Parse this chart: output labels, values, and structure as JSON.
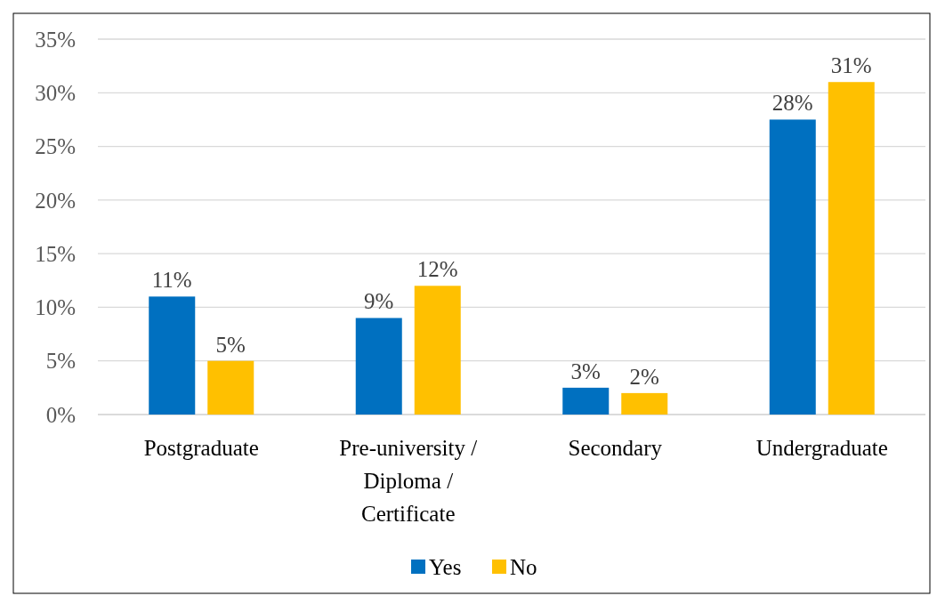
{
  "chart_data": {
    "type": "bar",
    "categories": [
      "Postgraduate",
      "Pre-university / Diploma / Certificate",
      "Secondary",
      "Undergraduate"
    ],
    "series": [
      {
        "name": "Yes",
        "color": "#0070c0",
        "values": [
          11,
          9,
          2.5,
          27.5
        ],
        "value_labels": [
          "11%",
          "9%",
          "3%",
          "28%"
        ]
      },
      {
        "name": "No",
        "color": "#ffc000",
        "values": [
          5,
          12,
          2,
          31
        ],
        "value_labels": [
          "5%",
          "12%",
          "2%",
          "31%"
        ]
      }
    ],
    "ylim": [
      0,
      35
    ],
    "yticks": [
      {
        "value": 0,
        "label": "0%"
      },
      {
        "value": 5,
        "label": "5%"
      },
      {
        "value": 10,
        "label": "10%"
      },
      {
        "value": 15,
        "label": "15%"
      },
      {
        "value": 20,
        "label": "20%"
      },
      {
        "value": 25,
        "label": "25%"
      },
      {
        "value": 30,
        "label": "30%"
      },
      {
        "value": 35,
        "label": "35%"
      }
    ],
    "grid": "y",
    "legend": "bottom"
  }
}
